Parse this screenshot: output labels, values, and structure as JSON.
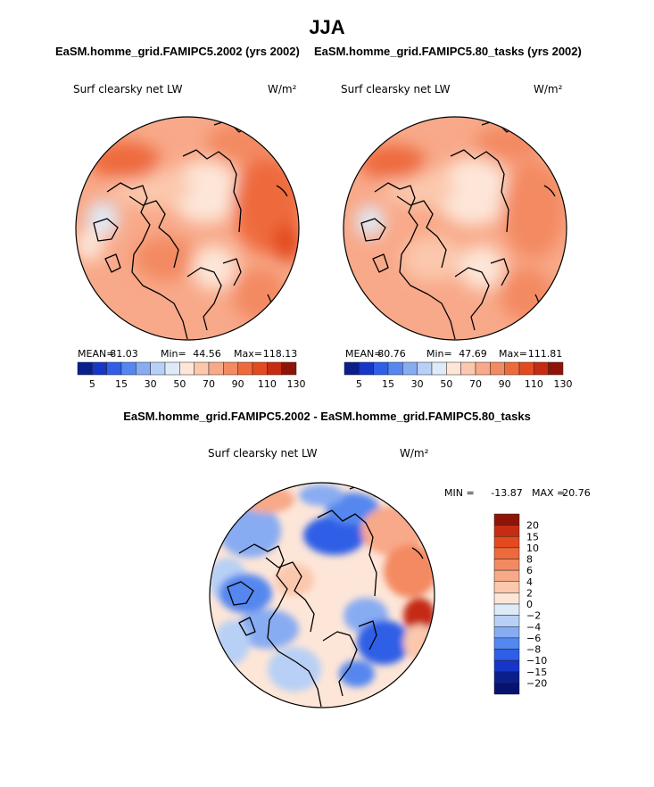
{
  "figure": {
    "title": "JJA",
    "diff_title": "EaSM.homme_grid.FAMIPC5.2002 - EaSM.homme_grid.FAMIPC5.80_tasks"
  },
  "chart_data": [
    {
      "type": "heatmap",
      "projection": "polar stereographic, north pole",
      "title": "EaSM.homme_grid.FAMIPC5.2002 (yrs 2002)",
      "variable": "Surf clearsky net LW",
      "units": "W/m²",
      "stats": {
        "mean_label": "MEAN=",
        "mean": "81.03",
        "min_label": "Min=",
        "min": "44.56",
        "max_label": "Max=",
        "max": "118.13"
      },
      "colorbar_labels": [
        "5",
        "15",
        "30",
        "50",
        "70",
        "90",
        "110",
        "130"
      ],
      "colors": [
        "#0a1e8c",
        "#1636c8",
        "#2f5fe6",
        "#5487ef",
        "#88acf2",
        "#b8d0f5",
        "#dfeaf8",
        "#fde6d8",
        "#fbc8ad",
        "#f8a989",
        "#f38a62",
        "#ee6a3c",
        "#e34a1f",
        "#c52c12",
        "#8e1407"
      ]
    },
    {
      "type": "heatmap",
      "projection": "polar stereographic, north pole",
      "title": "EaSM.homme_grid.FAMIPC5.80_tasks (yrs 2002)",
      "variable": "Surf clearsky net LW",
      "units": "W/m²",
      "stats": {
        "mean_label": "MEAN=",
        "mean": "80.76",
        "min_label": "Min=",
        "min": "47.69",
        "max_label": "Max=",
        "max": "111.81"
      },
      "colorbar_labels": [
        "5",
        "15",
        "30",
        "50",
        "70",
        "90",
        "110",
        "130"
      ],
      "colors": [
        "#0a1e8c",
        "#1636c8",
        "#2f5fe6",
        "#5487ef",
        "#88acf2",
        "#b8d0f5",
        "#dfeaf8",
        "#fde6d8",
        "#fbc8ad",
        "#f8a989",
        "#f38a62",
        "#ee6a3c",
        "#e34a1f",
        "#c52c12",
        "#8e1407"
      ]
    },
    {
      "type": "heatmap",
      "projection": "polar stereographic, north pole",
      "title": "EaSM.homme_grid.FAMIPC5.2002 - EaSM.homme_grid.FAMIPC5.80_tasks",
      "variable": "Surf clearsky net LW",
      "units": "W/m²",
      "stats": {
        "min_label": "MIN =",
        "min": "-13.87",
        "max_label": "MAX =",
        "max": "20.76"
      },
      "colorbar_labels": [
        "20",
        "15",
        "10",
        "8",
        "6",
        "4",
        "2",
        "0",
        "−2",
        "−4",
        "−6",
        "−8",
        "−10",
        "−15",
        "−20"
      ],
      "colors": [
        "#8e1407",
        "#c52c12",
        "#e34a1f",
        "#ee6a3c",
        "#f38a62",
        "#f8a989",
        "#fbc8ad",
        "#fde6d8",
        "#dfeaf8",
        "#b8d0f5",
        "#88acf2",
        "#5487ef",
        "#2f5fe6",
        "#1636c8",
        "#0a1e8c",
        "#061270"
      ]
    }
  ]
}
